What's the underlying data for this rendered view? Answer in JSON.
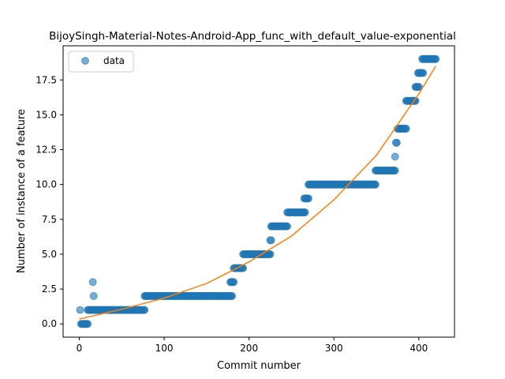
{
  "chart_data": {
    "type": "scatter",
    "title": "BijoySingh-Material-Notes-Android-App_func_with_default_value-exponential",
    "xlabel": "Commit number",
    "ylabel": "Number of instance of a feature",
    "xlim": [
      -19,
      442
    ],
    "ylim": [
      -0.95,
      19.95
    ],
    "x_ticks": [
      0,
      100,
      200,
      300,
      400
    ],
    "x_tick_labels": [
      "0",
      "100",
      "200",
      "300",
      "400"
    ],
    "y_ticks": [
      0.0,
      2.5,
      5.0,
      7.5,
      10.0,
      12.5,
      15.0,
      17.5
    ],
    "y_tick_labels": [
      "0.0",
      "2.5",
      "5.0",
      "7.5",
      "10.0",
      "12.5",
      "15.0",
      "17.5"
    ],
    "legend": {
      "position": "top-left",
      "entries": [
        "data"
      ]
    },
    "grid": false,
    "colors": {
      "points": "#1f77b4",
      "fit_line": "#ff7f0e",
      "axes": "#000000"
    },
    "series": [
      {
        "name": "data",
        "kind": "scatter",
        "segments": [
          {
            "x_start": 1,
            "x_end": 1,
            "y": 1
          },
          {
            "x_start": 2,
            "x_end": 10,
            "y": 0
          },
          {
            "x_start": 10,
            "x_end": 14,
            "y": 1
          },
          {
            "x_start": 16,
            "x_end": 16,
            "y": 3
          },
          {
            "x_start": 17,
            "x_end": 17,
            "y": 2
          },
          {
            "x_start": 15,
            "x_end": 77,
            "y": 1
          },
          {
            "x_start": 77,
            "x_end": 180,
            "y": 2
          },
          {
            "x_start": 178,
            "x_end": 182,
            "y": 3
          },
          {
            "x_start": 182,
            "x_end": 193,
            "y": 4
          },
          {
            "x_start": 193,
            "x_end": 225,
            "y": 5
          },
          {
            "x_start": 225,
            "x_end": 226,
            "y": 6
          },
          {
            "x_start": 226,
            "x_end": 245,
            "y": 7
          },
          {
            "x_start": 245,
            "x_end": 266,
            "y": 8
          },
          {
            "x_start": 265,
            "x_end": 270,
            "y": 9
          },
          {
            "x_start": 270,
            "x_end": 349,
            "y": 10
          },
          {
            "x_start": 349,
            "x_end": 372,
            "y": 11
          },
          {
            "x_start": 372,
            "x_end": 372,
            "y": 12
          },
          {
            "x_start": 373,
            "x_end": 374,
            "y": 13
          },
          {
            "x_start": 375,
            "x_end": 385,
            "y": 14
          },
          {
            "x_start": 385,
            "x_end": 396,
            "y": 16
          },
          {
            "x_start": 396,
            "x_end": 400,
            "y": 17
          },
          {
            "x_start": 399,
            "x_end": 405,
            "y": 18
          },
          {
            "x_start": 404,
            "x_end": 420,
            "y": 19
          }
        ]
      },
      {
        "name": "",
        "kind": "line",
        "x": [
          0,
          50,
          100,
          150,
          200,
          250,
          300,
          350,
          400,
          420
        ],
        "y": [
          0.35,
          1.05,
          1.85,
          2.9,
          4.45,
          6.3,
          8.9,
          12.1,
          16.5,
          18.5
        ]
      }
    ]
  }
}
